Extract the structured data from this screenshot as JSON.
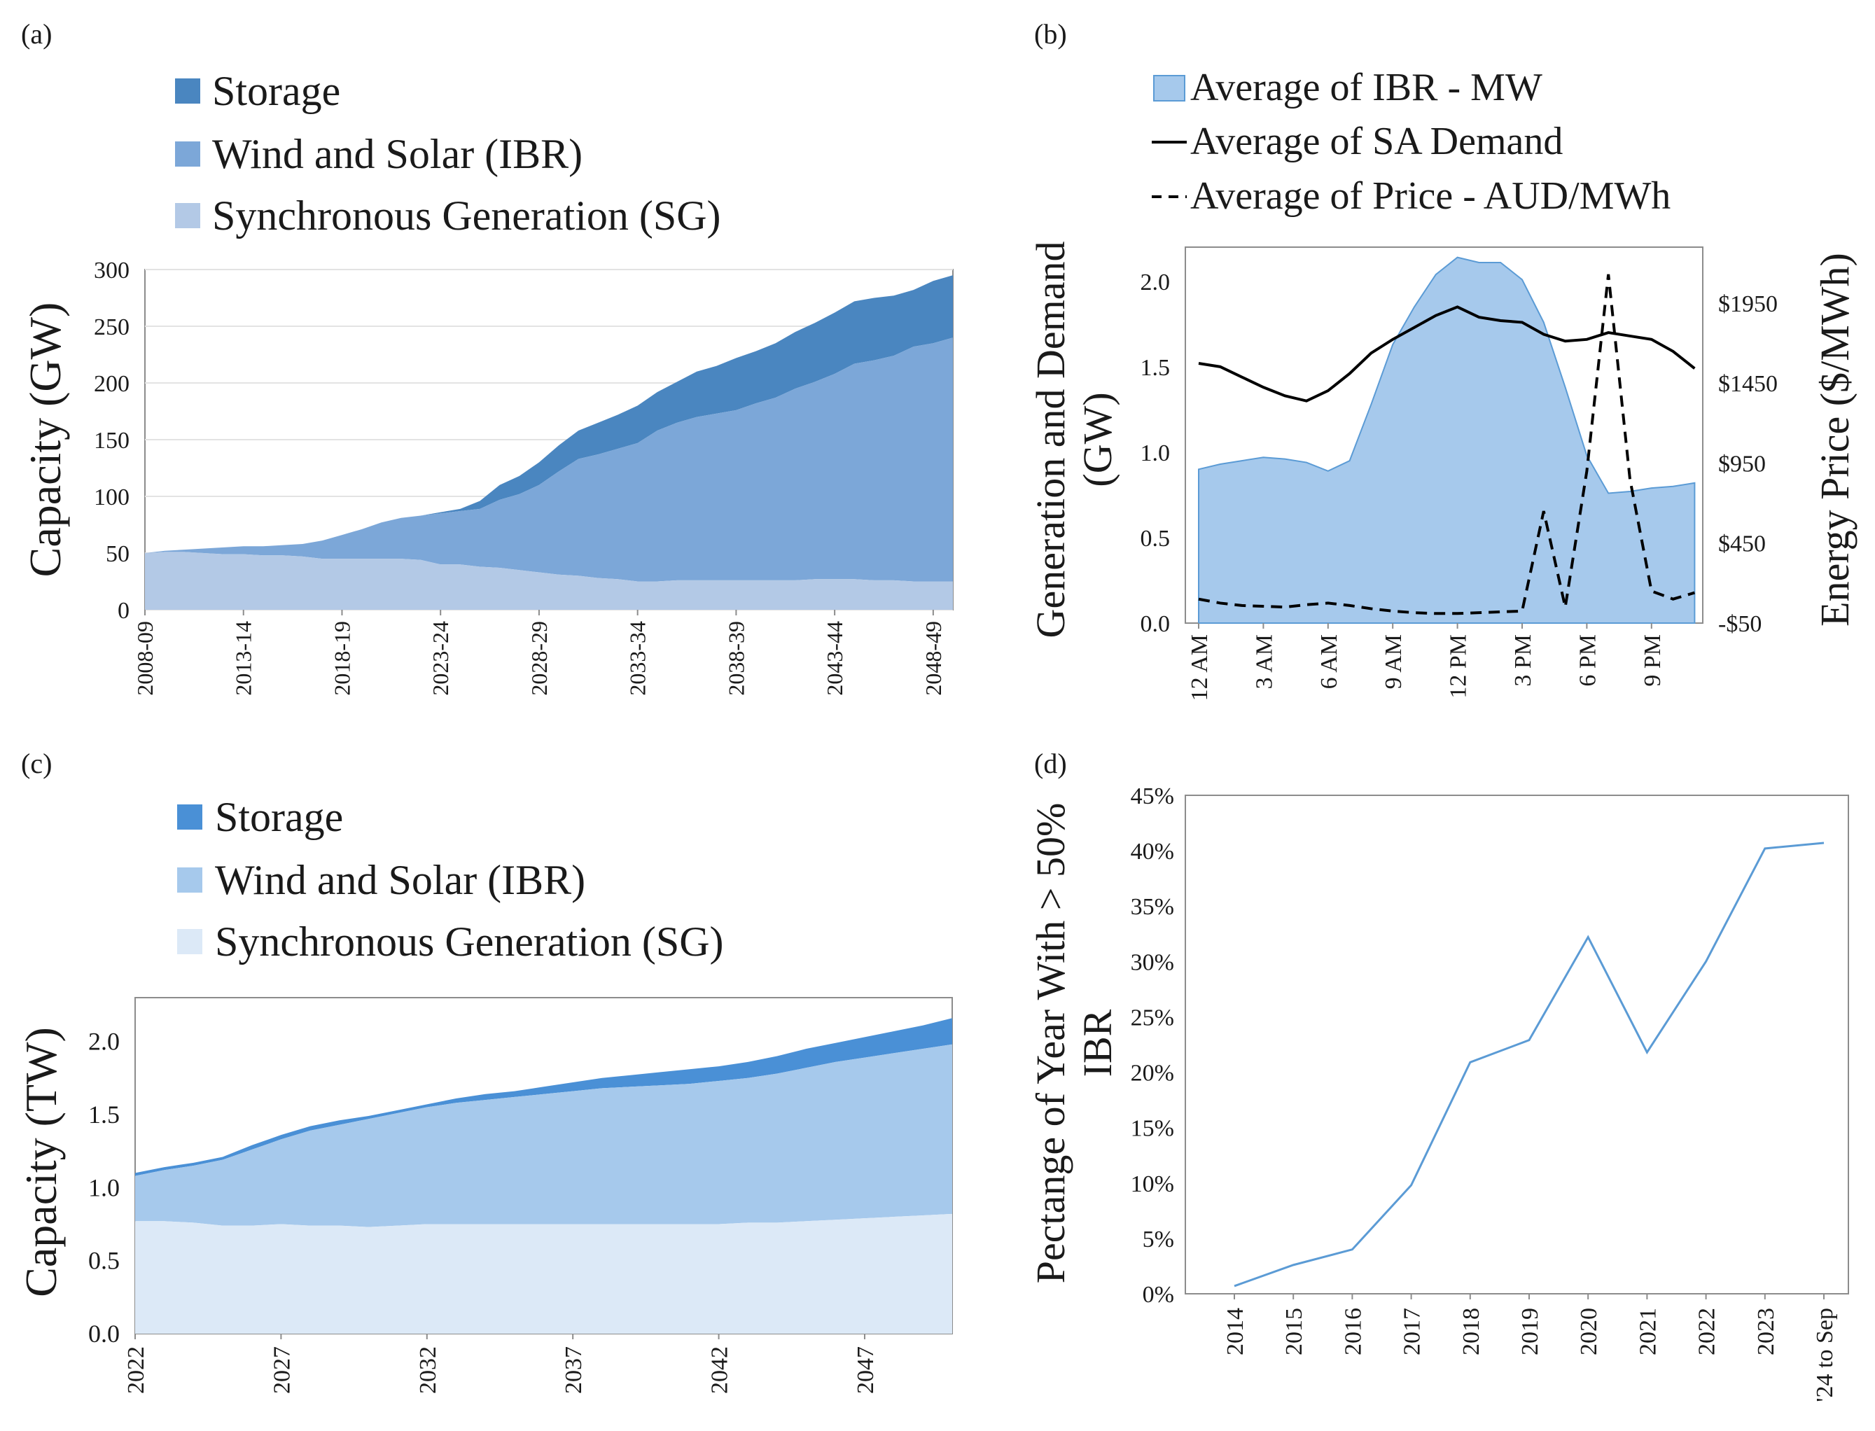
{
  "colors": {
    "storage_a": "#4a86c0",
    "ibr_a": "#7ca7d8",
    "sg_a": "#b3c9e6",
    "storage_c": "#4a90d6",
    "ibr_c": "#a6c9ec",
    "sg_c": "#dce9f7",
    "ibr_b": "#a6c9ec",
    "ibr_b_stroke": "#5b9bd5",
    "line_d": "#5b9bd5",
    "black": "#000000"
  },
  "chart_data": [
    {
      "panel": "(a)",
      "type": "area",
      "stacked": true,
      "legend": [
        "Storage",
        "Wind and Solar (IBR)",
        "Synchronous Generation (SG)"
      ],
      "ylabel": "Capacity (GW)",
      "ylim": [
        0,
        300
      ],
      "yticks": [
        0,
        50,
        100,
        150,
        200,
        250,
        300
      ],
      "xtick_labels": [
        "2008-09",
        "2013-14",
        "2018-19",
        "2023-24",
        "2028-29",
        "2033-34",
        "2038-39",
        "2043-44",
        "2048-49"
      ],
      "n_points": 42,
      "series": [
        {
          "name": "Synchronous Generation (SG)",
          "values": [
            50,
            51,
            51,
            50,
            49,
            49,
            48,
            48,
            47,
            45,
            45,
            45,
            45,
            45,
            44,
            40,
            40,
            38,
            37,
            35,
            33,
            31,
            30,
            28,
            27,
            25,
            25,
            26,
            26,
            26,
            26,
            26,
            26,
            26,
            27,
            27,
            27,
            26,
            26,
            25,
            25,
            25
          ]
        },
        {
          "name": "Wind and Solar (IBR) (cumulative top)",
          "values": [
            50,
            52,
            53,
            54,
            55,
            56,
            56,
            57,
            58,
            61,
            66,
            71,
            77,
            81,
            83,
            85,
            87,
            89,
            97,
            102,
            110,
            122,
            133,
            137,
            142,
            147,
            158,
            165,
            170,
            173,
            176,
            182,
            187,
            195,
            201,
            208,
            217,
            220,
            224,
            232,
            235,
            240
          ]
        },
        {
          "name": "Storage (cumulative top)",
          "values": [
            50,
            52,
            53,
            54,
            55,
            56,
            56,
            57,
            58,
            61,
            66,
            71,
            77,
            81,
            83,
            86,
            89,
            96,
            110,
            118,
            130,
            145,
            158,
            165,
            172,
            180,
            192,
            201,
            210,
            215,
            222,
            228,
            235,
            245,
            253,
            262,
            272,
            275,
            277,
            282,
            290,
            295
          ]
        }
      ]
    },
    {
      "panel": "(b)",
      "type": "area+line",
      "legend": [
        "Average of IBR -  MW",
        "Average of SA Demand",
        "Average of Price - AUD/MWh"
      ],
      "ylabel": "Generation and Demand (GW)",
      "y2label": "Energy Price ($/MWh)",
      "ylim": [
        0,
        2.2
      ],
      "yticks": [
        "0.0",
        "0.5",
        "1.0",
        "1.5",
        "2.0"
      ],
      "y2lim": [
        -50,
        2300
      ],
      "y2ticks": [
        "-$50",
        "$450",
        "$950",
        "$1450",
        "$1950"
      ],
      "xtick_labels": [
        "12 AM",
        "3 AM",
        "6 AM",
        "9 AM",
        "12 PM",
        "3 PM",
        "6 PM",
        "9 PM"
      ],
      "n_points": 24,
      "series": [
        {
          "name": "Average of IBR -  MW",
          "values": [
            0.9,
            0.93,
            0.95,
            0.97,
            0.96,
            0.94,
            0.89,
            0.95,
            1.28,
            1.63,
            1.85,
            2.04,
            2.14,
            2.11,
            2.11,
            2.01,
            1.76,
            1.38,
            0.98,
            0.76,
            0.77,
            0.79,
            0.8,
            0.82
          ]
        },
        {
          "name": "Average of SA Demand",
          "values": [
            1.52,
            1.5,
            1.44,
            1.38,
            1.33,
            1.3,
            1.36,
            1.46,
            1.58,
            1.66,
            1.73,
            1.8,
            1.85,
            1.79,
            1.77,
            1.76,
            1.69,
            1.65,
            1.66,
            1.7,
            1.68,
            1.66,
            1.59,
            1.49
          ]
        },
        {
          "name": "Average of Price - AUD/MWh",
          "values": [
            100,
            75,
            60,
            55,
            50,
            65,
            75,
            60,
            40,
            25,
            15,
            10,
            10,
            15,
            20,
            25,
            650,
            50,
            900,
            2130,
            850,
            150,
            100,
            140
          ]
        }
      ]
    },
    {
      "panel": "(c)",
      "type": "area",
      "stacked": true,
      "legend": [
        "Storage",
        "Wind and Solar (IBR)",
        "Synchronous Generation (SG)"
      ],
      "ylabel": "Capacity (TW)",
      "ylim": [
        0,
        2.3
      ],
      "yticks": [
        "0.0",
        "0.5",
        "1.0",
        "1.5",
        "2.0"
      ],
      "xtick_labels": [
        "2022",
        "2027",
        "2032",
        "2037",
        "2042",
        "2047"
      ],
      "x": [
        2022,
        2023,
        2024,
        2025,
        2026,
        2027,
        2028,
        2029,
        2030,
        2031,
        2032,
        2033,
        2034,
        2035,
        2036,
        2037,
        2038,
        2039,
        2040,
        2041,
        2042,
        2043,
        2044,
        2045,
        2046,
        2047,
        2048,
        2049,
        2050
      ],
      "series": [
        {
          "name": "Synchronous Generation (SG)",
          "values": [
            0.77,
            0.77,
            0.76,
            0.74,
            0.74,
            0.75,
            0.74,
            0.74,
            0.73,
            0.74,
            0.75,
            0.75,
            0.75,
            0.75,
            0.75,
            0.75,
            0.75,
            0.75,
            0.75,
            0.75,
            0.75,
            0.76,
            0.76,
            0.77,
            0.78,
            0.79,
            0.8,
            0.81,
            0.82
          ]
        },
        {
          "name": "Wind and Solar (IBR) (cumulative top)",
          "values": [
            1.08,
            1.12,
            1.15,
            1.19,
            1.26,
            1.33,
            1.39,
            1.43,
            1.47,
            1.51,
            1.55,
            1.58,
            1.6,
            1.62,
            1.64,
            1.66,
            1.68,
            1.69,
            1.7,
            1.71,
            1.73,
            1.75,
            1.78,
            1.82,
            1.86,
            1.89,
            1.92,
            1.95,
            1.98
          ]
        },
        {
          "name": "Storage (cumulative top)",
          "values": [
            1.1,
            1.14,
            1.17,
            1.21,
            1.29,
            1.36,
            1.42,
            1.46,
            1.49,
            1.53,
            1.57,
            1.61,
            1.64,
            1.66,
            1.69,
            1.72,
            1.75,
            1.77,
            1.79,
            1.81,
            1.83,
            1.86,
            1.9,
            1.95,
            1.99,
            2.03,
            2.07,
            2.11,
            2.16
          ]
        }
      ]
    },
    {
      "panel": "(d)",
      "type": "line",
      "ylabel": "Pectange of Year With > 50% IBR",
      "ylim": [
        0,
        45
      ],
      "yticks": [
        "0%",
        "5%",
        "10%",
        "15%",
        "20%",
        "25%",
        "30%",
        "35%",
        "40%",
        "45%"
      ],
      "categories": [
        "2014",
        "2015",
        "2016",
        "2017",
        "2018",
        "2019",
        "2020",
        "2021",
        "2022",
        "2023",
        "'24 to Sep"
      ],
      "values": [
        0.7,
        2.6,
        4.0,
        9.8,
        20.9,
        22.9,
        32.2,
        21.8,
        30.0,
        40.2,
        40.7
      ]
    }
  ]
}
